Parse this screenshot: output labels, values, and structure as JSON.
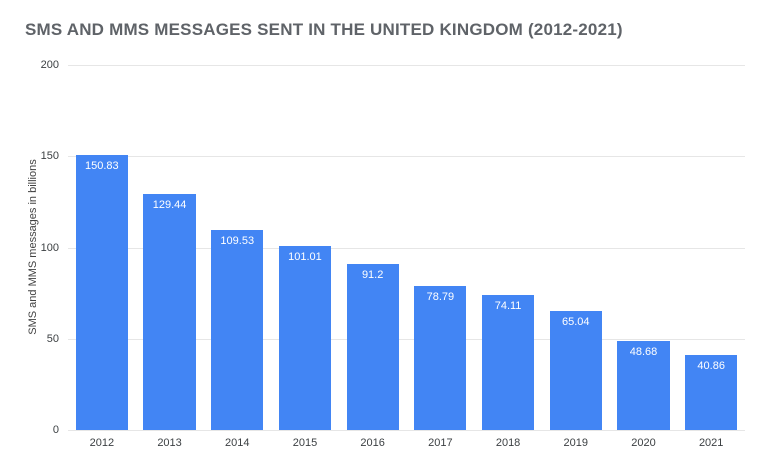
{
  "chart_data": {
    "type": "bar",
    "title": "SMS AND MMS MESSAGES SENT IN THE UNITED KINGDOM (2012-2021)",
    "categories": [
      "2012",
      "2013",
      "2014",
      "2015",
      "2016",
      "2017",
      "2018",
      "2019",
      "2020",
      "2021"
    ],
    "values": [
      150.83,
      129.44,
      109.53,
      101.01,
      91.2,
      78.79,
      74.11,
      65.04,
      48.68,
      40.86
    ],
    "value_labels": [
      "150.83",
      "129.44",
      "109.53",
      "101.01",
      "91.2",
      "78.79",
      "74.11",
      "65.04",
      "48.68",
      "40.86"
    ],
    "xlabel": "",
    "ylabel": "SMS and MMS messages in billions",
    "ylim": [
      0,
      200
    ],
    "yticks": [
      0,
      50,
      100,
      150,
      200
    ],
    "grid": true,
    "legend": "none",
    "bar_color": "#4285f4",
    "value_label_color": "#ffffff",
    "grid_color": "#e6e6e6"
  }
}
